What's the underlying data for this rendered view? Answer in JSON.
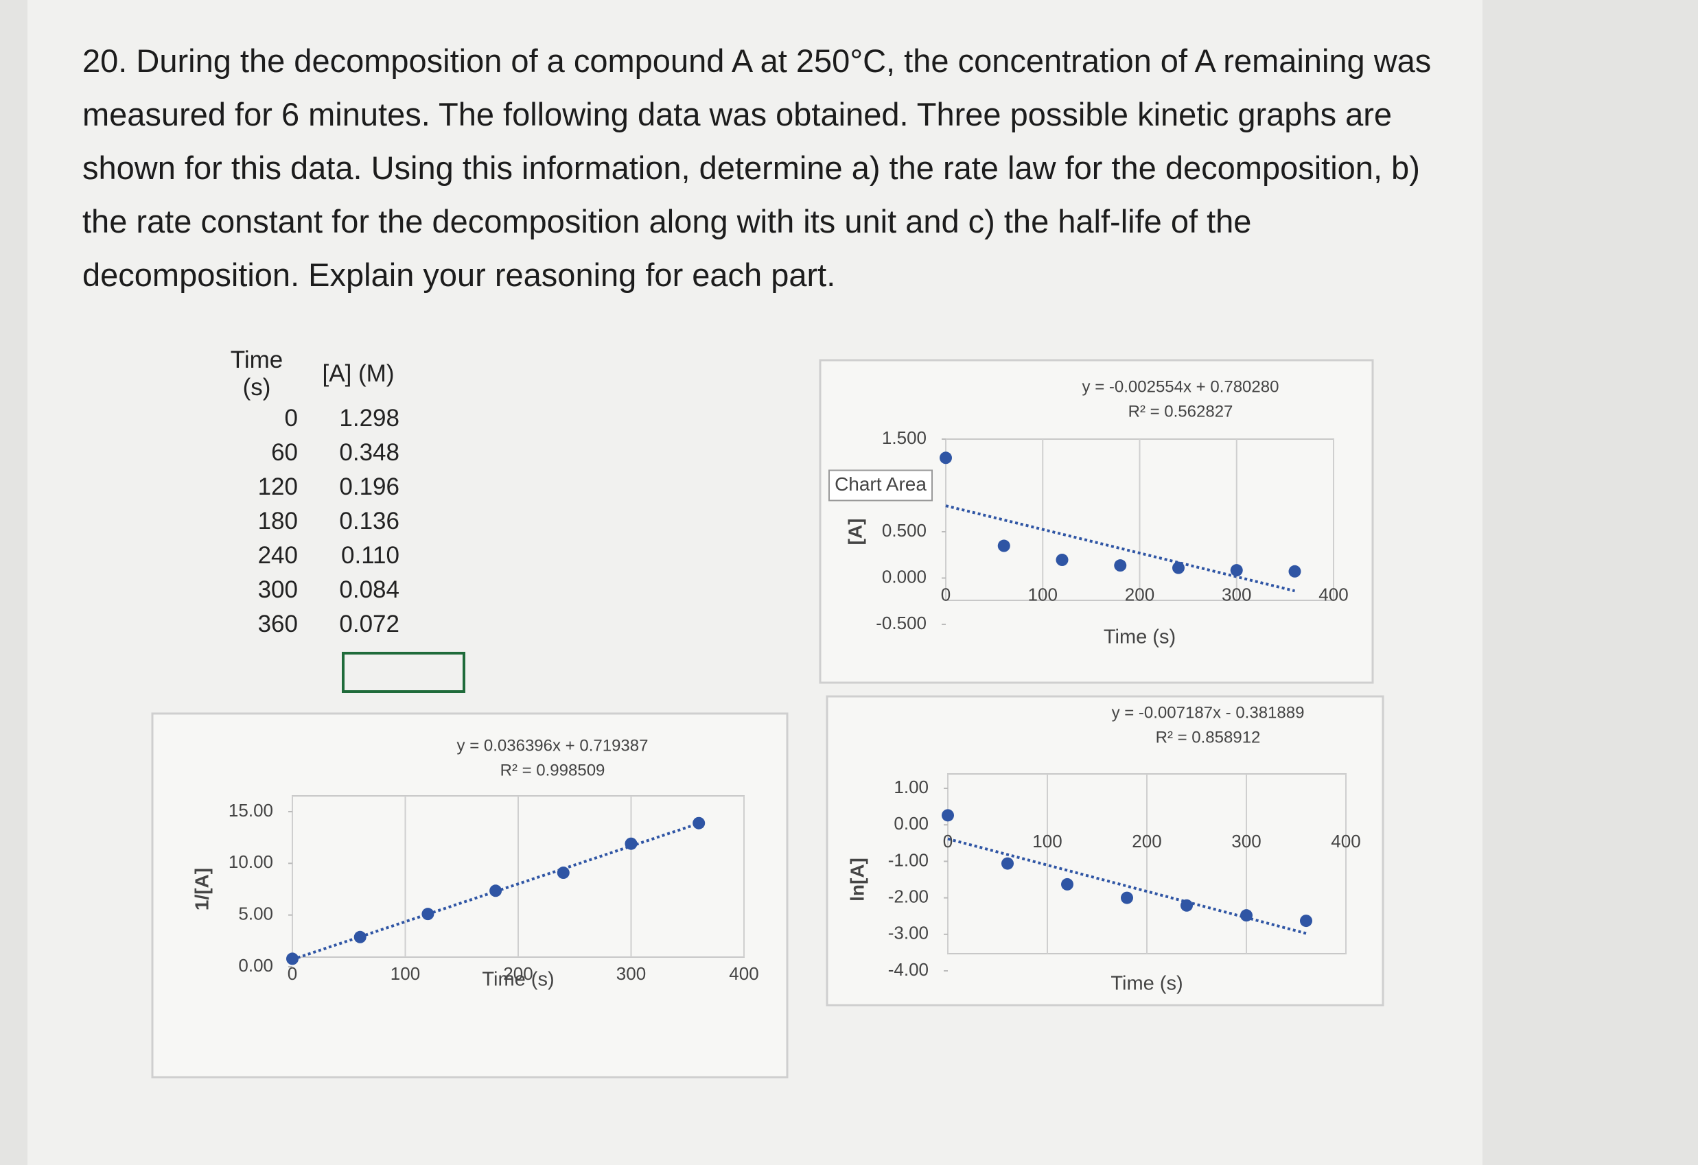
{
  "question": "20. During the decomposition of a compound A at 250°C, the concentration of A remaining was measured for 6 minutes. The following data was obtained. Three possible kinetic graphs are shown for this data. Using this information, determine a) the rate law for the decomposition, b) the rate constant for the decomposition along with its unit and c) the half-life of the decomposition. Explain your reasoning for each part.",
  "table": {
    "headers": [
      "Time (s)",
      "[A] (M)"
    ],
    "rows": [
      [
        "0",
        "1.298"
      ],
      [
        "60",
        "0.348"
      ],
      [
        "120",
        "0.196"
      ],
      [
        "180",
        "0.136"
      ],
      [
        "240",
        "0.110"
      ],
      [
        "300",
        "0.084"
      ],
      [
        "360",
        "0.072"
      ]
    ]
  },
  "chart_data": [
    {
      "type": "scatter",
      "equation": "y = -0.002554x + 0.780280",
      "r_squared": "R² = 0.562827",
      "annotation": "Chart Area",
      "x_label": "Time (s)",
      "y_label": "[A]",
      "color": "#2f55a4",
      "x": [
        0,
        60,
        120,
        180,
        240,
        300,
        360
      ],
      "values": [
        1.298,
        0.348,
        0.196,
        0.136,
        0.11,
        0.084,
        0.072
      ],
      "xlim": [
        0,
        400
      ],
      "xticks": [
        0,
        100,
        200,
        300,
        400
      ],
      "ylim": [
        -0.5,
        1.5
      ],
      "yticks": [
        {
          "value": 1.5,
          "label": "1.500"
        },
        {
          "value": 0.5,
          "label": "0.500"
        },
        {
          "value": 0,
          "label": "0.000"
        },
        {
          "value": -0.5,
          "label": "-0.500"
        }
      ]
    },
    {
      "type": "scatter",
      "equation": "y = 0.036396x + 0.719387",
      "r_squared": "R² = 0.998509",
      "x_label": "Time (s)",
      "y_label": "1/[A]",
      "color": "#2f55a4",
      "x": [
        0,
        60,
        120,
        180,
        240,
        300,
        360
      ],
      "values": [
        0.77,
        2.87,
        5.1,
        7.35,
        9.09,
        11.9,
        13.89
      ],
      "xlim": [
        0,
        400
      ],
      "xticks": [
        0,
        100,
        200,
        300,
        400
      ],
      "ylim": [
        0,
        15
      ],
      "yticks": [
        {
          "value": 15,
          "label": "15.00"
        },
        {
          "value": 10,
          "label": "10.00"
        },
        {
          "value": 5,
          "label": "5.00"
        },
        {
          "value": 0,
          "label": "0.00"
        }
      ]
    },
    {
      "type": "scatter",
      "equation": "y = -0.007187x - 0.381889",
      "r_squared": "R² = 0.858912",
      "x_label": "Time (s)",
      "y_label": "ln[A]",
      "color": "#2f55a4",
      "x": [
        0,
        60,
        120,
        180,
        240,
        300,
        360
      ],
      "values": [
        0.26,
        -1.06,
        -1.63,
        -2.0,
        -2.21,
        -2.48,
        -2.63
      ],
      "xlim": [
        0,
        400
      ],
      "xticks": [
        0,
        100,
        200,
        300,
        400
      ],
      "ylim": [
        -4,
        1
      ],
      "yticks": [
        {
          "value": 1,
          "label": "1.00"
        },
        {
          "value": 0,
          "label": "0.00"
        },
        {
          "value": -1,
          "label": "-1.00"
        },
        {
          "value": -2,
          "label": "-2.00"
        },
        {
          "value": -3,
          "label": "-3.00"
        },
        {
          "value": -4,
          "label": "-4.00"
        }
      ]
    }
  ]
}
